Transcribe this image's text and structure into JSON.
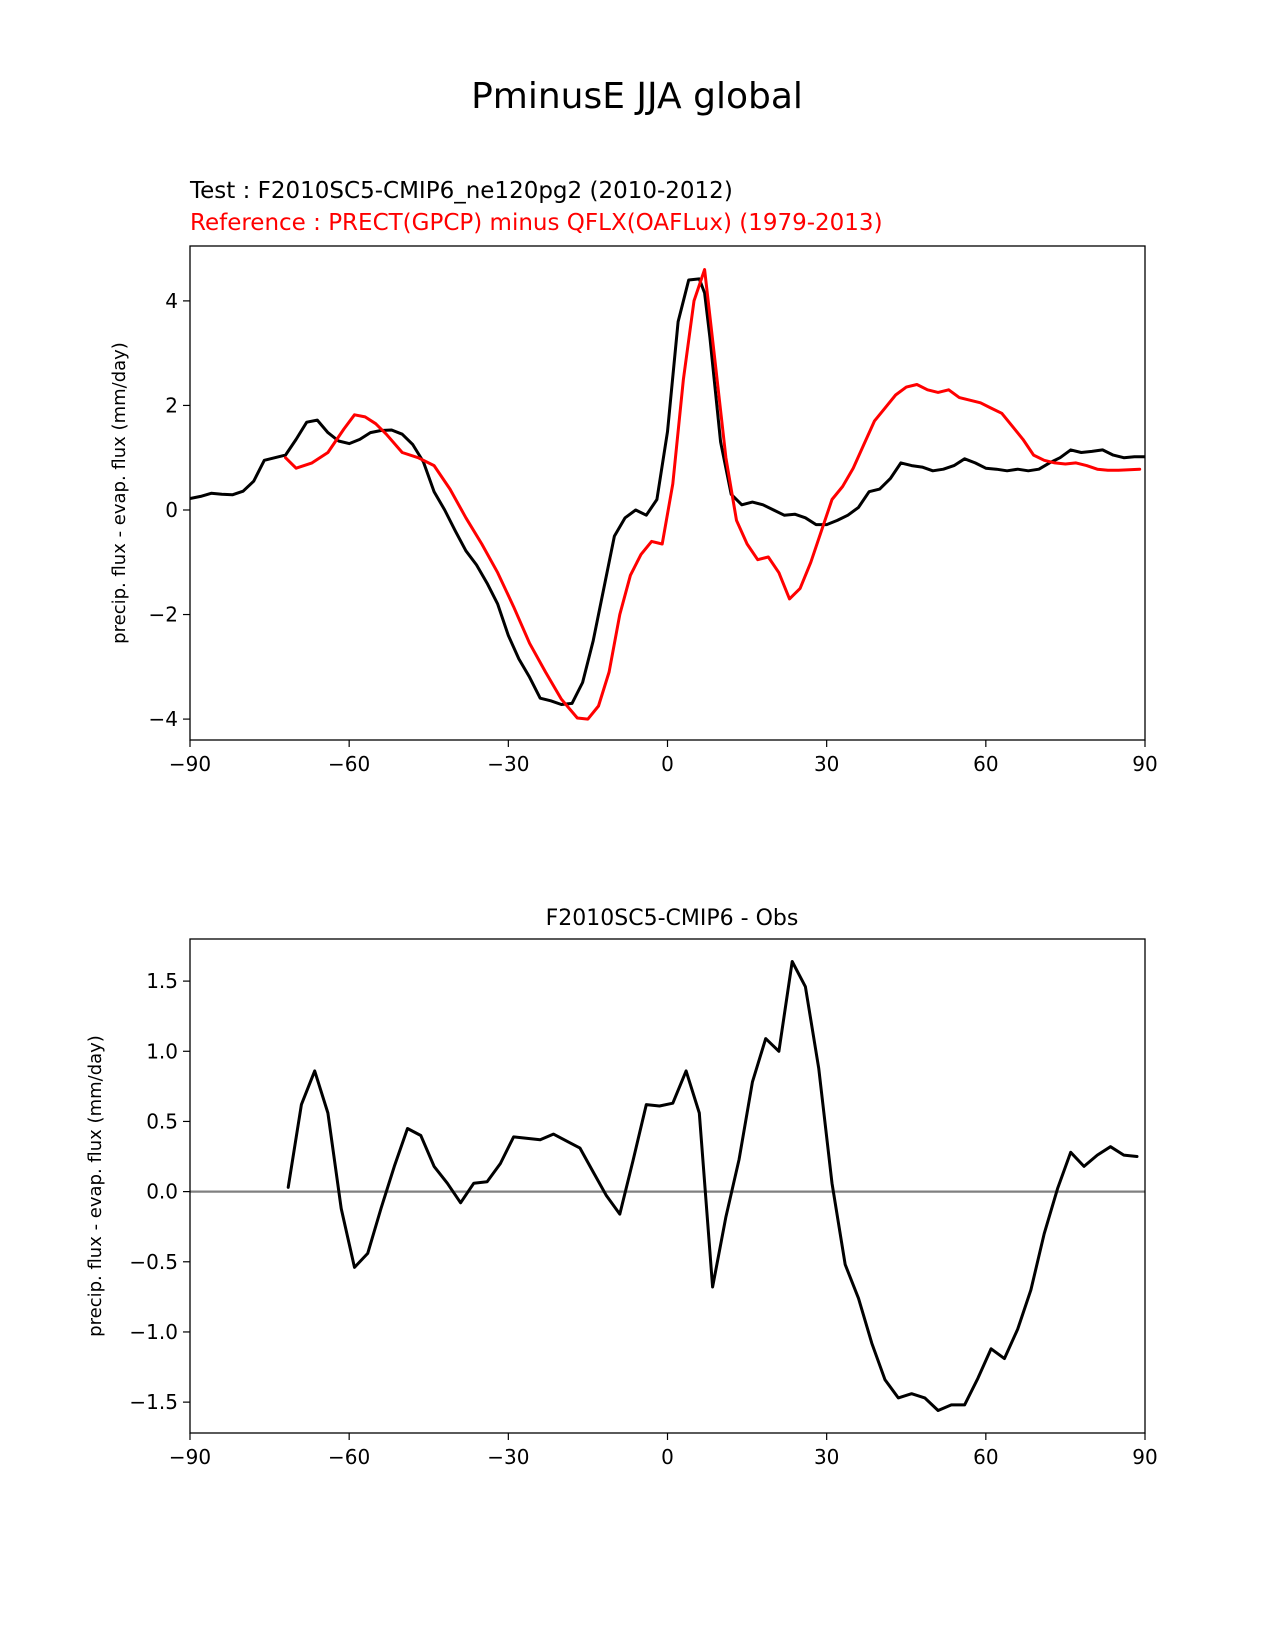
{
  "suptitle": "PminusE JJA global",
  "colors": {
    "test": "#000000",
    "reference": "#ff0000",
    "zero_line": "#808080"
  },
  "chart_data": [
    {
      "type": "line",
      "test_label": "Test : F2010SC5-CMIP6_ne120pg2 (2010-2012)",
      "reference_label": "Reference : PRECT(GPCP) minus QFLX(OAFLux) (1979-2013)",
      "ylabel": "precip. flux - evap. flux (mm/day)",
      "xlim": [
        -90,
        90
      ],
      "ylim": [
        -4.4,
        5.05
      ],
      "xticks": [
        -90,
        -60,
        -30,
        0,
        30,
        60,
        90
      ],
      "xtick_labels": [
        "−90",
        "−60",
        "−30",
        "0",
        "30",
        "60",
        "90"
      ],
      "yticks": [
        -4,
        -2,
        0,
        2,
        4
      ],
      "ytick_labels": [
        "−4",
        "−2",
        "0",
        "2",
        "4"
      ],
      "series": [
        {
          "name": "test",
          "color": "#000000",
          "x": [
            -90,
            -88,
            -86,
            -84,
            -82,
            -80,
            -78,
            -76,
            -74,
            -72,
            -70,
            -68,
            -66,
            -64,
            -62,
            -60,
            -58,
            -56,
            -54,
            -52,
            -50,
            -48,
            -46,
            -44,
            -42,
            -40,
            -38,
            -36,
            -34,
            -32,
            -30,
            -28,
            -26,
            -24,
            -22,
            -20,
            -18,
            -16,
            -14,
            -12,
            -10,
            -8,
            -6,
            -4,
            -2,
            0,
            2,
            4,
            6,
            7,
            8,
            10,
            12,
            14,
            16,
            18,
            20,
            22,
            24,
            26,
            28,
            30,
            32,
            34,
            36,
            38,
            40,
            42,
            44,
            46,
            48,
            50,
            52,
            54,
            56,
            58,
            60,
            62,
            64,
            66,
            68,
            70,
            72,
            74,
            76,
            78,
            80,
            82,
            84,
            86,
            88,
            90
          ],
          "y": [
            0.22,
            0.26,
            0.32,
            0.3,
            0.29,
            0.36,
            0.55,
            0.95,
            1.0,
            1.05,
            1.35,
            1.68,
            1.72,
            1.48,
            1.32,
            1.27,
            1.35,
            1.48,
            1.52,
            1.53,
            1.45,
            1.25,
            0.92,
            0.35,
            0.0,
            -0.4,
            -0.78,
            -1.05,
            -1.4,
            -1.8,
            -2.4,
            -2.85,
            -3.2,
            -3.6,
            -3.65,
            -3.72,
            -3.7,
            -3.3,
            -2.5,
            -1.5,
            -0.5,
            -0.15,
            0.0,
            -0.1,
            0.2,
            1.5,
            3.6,
            4.4,
            4.42,
            4.15,
            3.3,
            1.3,
            0.3,
            0.1,
            0.15,
            0.1,
            0.0,
            -0.1,
            -0.08,
            -0.15,
            -0.28,
            -0.28,
            -0.2,
            -0.1,
            0.05,
            0.35,
            0.4,
            0.6,
            0.9,
            0.85,
            0.82,
            0.75,
            0.78,
            0.85,
            0.98,
            0.9,
            0.8,
            0.78,
            0.75,
            0.78,
            0.75,
            0.78,
            0.9,
            1.0,
            1.15,
            1.1,
            1.12,
            1.15,
            1.05,
            1.0,
            1.02,
            1.02
          ]
        },
        {
          "name": "reference",
          "color": "#ff0000",
          "x": [
            -72,
            -70,
            -67,
            -64,
            -61,
            -59,
            -57,
            -55,
            -53,
            -50,
            -47,
            -44,
            -41,
            -38,
            -35,
            -32,
            -29,
            -26,
            -23,
            -20,
            -17,
            -15,
            -13,
            -11,
            -9,
            -7,
            -5,
            -3,
            -1,
            1,
            3,
            5,
            7,
            9,
            11,
            13,
            15,
            17,
            19,
            21,
            23,
            25,
            27,
            29,
            31,
            33,
            35,
            37,
            39,
            41,
            43,
            45,
            47,
            49,
            51,
            53,
            55,
            57,
            59,
            61,
            63,
            65,
            67,
            69,
            71,
            73,
            75,
            77,
            79,
            81,
            83,
            85,
            87,
            89
          ],
          "y": [
            1.0,
            0.8,
            0.9,
            1.1,
            1.55,
            1.82,
            1.78,
            1.65,
            1.45,
            1.1,
            1.0,
            0.85,
            0.4,
            -0.15,
            -0.65,
            -1.2,
            -1.85,
            -2.55,
            -3.1,
            -3.62,
            -3.98,
            -4.0,
            -3.75,
            -3.1,
            -2.0,
            -1.25,
            -0.85,
            -0.6,
            -0.65,
            0.5,
            2.5,
            4.0,
            4.6,
            2.8,
            1.0,
            -0.2,
            -0.65,
            -0.95,
            -0.9,
            -1.2,
            -1.7,
            -1.5,
            -1.0,
            -0.4,
            0.2,
            0.45,
            0.8,
            1.25,
            1.7,
            1.95,
            2.2,
            2.35,
            2.4,
            2.3,
            2.25,
            2.3,
            2.15,
            2.1,
            2.05,
            1.95,
            1.85,
            1.6,
            1.35,
            1.05,
            0.95,
            0.9,
            0.88,
            0.9,
            0.85,
            0.78,
            0.76,
            0.76,
            0.77,
            0.78
          ]
        }
      ]
    },
    {
      "type": "line",
      "title": "F2010SC5-CMIP6 - Obs",
      "ylabel": "precip. flux - evap. flux (mm/day)",
      "xlim": [
        -90,
        90
      ],
      "ylim": [
        -1.72,
        1.8
      ],
      "xticks": [
        -90,
        -60,
        -30,
        0,
        30,
        60,
        90
      ],
      "xtick_labels": [
        "−90",
        "−60",
        "−30",
        "0",
        "30",
        "60",
        "90"
      ],
      "yticks": [
        -1.5,
        -1.0,
        -0.5,
        0.0,
        0.5,
        1.0,
        1.5
      ],
      "ytick_labels": [
        "−1.5",
        "−1.0",
        "−0.5",
        "0.0",
        "0.5",
        "1.0",
        "1.5"
      ],
      "zero_line": 0.0,
      "series": [
        {
          "name": "difference",
          "color": "#000000",
          "x": [
            -71.5,
            -69,
            -66.5,
            -64,
            -61.5,
            -59,
            -56.5,
            -54,
            -51.5,
            -49,
            -46.5,
            -44,
            -41.5,
            -39,
            -36.5,
            -34,
            -31.5,
            -29,
            -24,
            -21.5,
            -16.5,
            -14,
            -11.5,
            -9,
            -6.5,
            -4,
            -1.5,
            1,
            3.5,
            6,
            8.5,
            11,
            13.5,
            16,
            18.5,
            21,
            23.5,
            26,
            28.5,
            31,
            33.5,
            36,
            38.5,
            41,
            43.5,
            46,
            48.5,
            51,
            53.5,
            56,
            58.5,
            61,
            63.5,
            66,
            68.5,
            71,
            73.5,
            76,
            78.5,
            81,
            83.5,
            86,
            88.5
          ],
          "y": [
            0.03,
            0.62,
            0.86,
            0.56,
            -0.12,
            -0.54,
            -0.44,
            -0.12,
            0.18,
            0.45,
            0.4,
            0.18,
            0.06,
            -0.08,
            0.06,
            0.07,
            0.2,
            0.39,
            0.37,
            0.41,
            0.31,
            0.14,
            -0.03,
            -0.16,
            0.22,
            0.62,
            0.61,
            0.63,
            0.86,
            0.56,
            -0.68,
            -0.18,
            0.23,
            0.78,
            1.09,
            1.0,
            1.64,
            1.46,
            0.88,
            0.06,
            -0.52,
            -0.76,
            -1.08,
            -1.34,
            -1.47,
            -1.44,
            -1.47,
            -1.56,
            -1.52,
            -1.52,
            -1.33,
            -1.12,
            -1.19,
            -0.98,
            -0.7,
            -0.3,
            0.02,
            0.28,
            0.18,
            0.26,
            0.32,
            0.26,
            0.25
          ]
        }
      ]
    }
  ]
}
